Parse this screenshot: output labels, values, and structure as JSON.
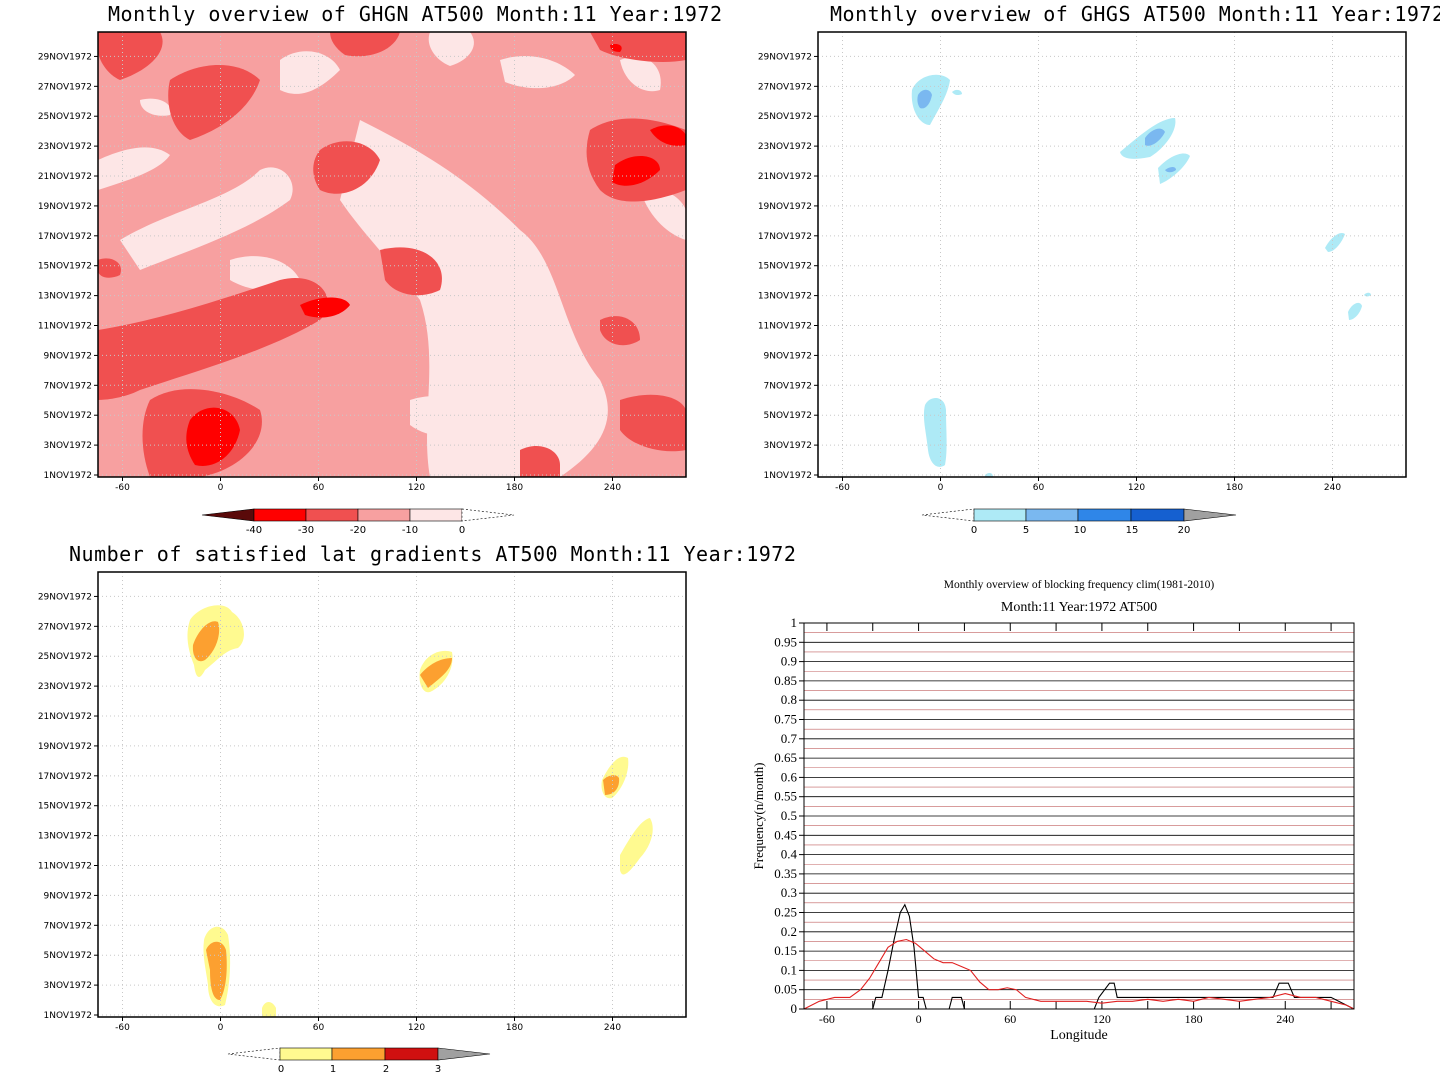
{
  "panels": {
    "ghgn": {
      "title": "Monthly overview of GHGN AT500 Month:11 Year:1972",
      "colorbar": [
        "-40",
        "-30",
        "-20",
        "-10",
        "0"
      ],
      "colors": [
        "#5a0a0a",
        "#ff0000",
        "#f05050",
        "#f7a0a0",
        "#fde6e6"
      ]
    },
    "ghgs": {
      "title": "Monthly overview of GHGS AT500 Month:11 Year:1972",
      "colorbar": [
        "0",
        "5",
        "10",
        "15",
        "20"
      ],
      "colors": [
        "#aeeaf6",
        "#7ab8f0",
        "#2f86e8",
        "#1560d0",
        "#a0a0a0"
      ]
    },
    "grad": {
      "title": "Number of satisfied lat gradients AT500 Month:11 Year:1972",
      "colorbar": [
        "0",
        "1",
        "2",
        "3"
      ],
      "colors": [
        "#fffa90",
        "#fca030",
        "#d01010",
        "#a0a0a0"
      ]
    },
    "freq": {
      "title": "Monthly overview of blocking frequency clim(1981-2010)",
      "subtitle": "Month:11 Year:1972  AT500"
    }
  },
  "date_axis": [
    "1NOV1972",
    "3NOV1972",
    "5NOV1972",
    "7NOV1972",
    "9NOV1972",
    "11NOV1972",
    "13NOV1972",
    "15NOV1972",
    "17NOV1972",
    "19NOV1972",
    "21NOV1972",
    "23NOV1972",
    "25NOV1972",
    "27NOV1972",
    "29NOV1972"
  ],
  "lon_axis": [
    "-60",
    "0",
    "60",
    "120",
    "180",
    "240"
  ],
  "chart_data": [
    {
      "type": "heatmap",
      "title": "Monthly overview of GHGN AT500 Month:11 Year:1972",
      "x_ticks": [
        -60,
        0,
        60,
        120,
        180,
        240
      ],
      "y_ticks": [
        "1NOV1972",
        "3NOV1972",
        "5NOV1972",
        "7NOV1972",
        "9NOV1972",
        "11NOV1972",
        "13NOV1972",
        "15NOV1972",
        "17NOV1972",
        "19NOV1972",
        "21NOV1972",
        "23NOV1972",
        "25NOV1972",
        "27NOV1972",
        "29NOV1972"
      ],
      "levels": [
        -40,
        -30,
        -20,
        -10,
        0
      ],
      "grid": true
    },
    {
      "type": "heatmap",
      "title": "Monthly overview of GHGS AT500 Month:11 Year:1972",
      "x_ticks": [
        -60,
        0,
        60,
        120,
        180,
        240
      ],
      "levels": [
        0,
        5,
        10,
        15,
        20
      ],
      "grid": true
    },
    {
      "type": "heatmap",
      "title": "Number of satisfied lat gradients AT500 Month:11 Year:1972",
      "x_ticks": [
        -60,
        0,
        60,
        120,
        180,
        240
      ],
      "levels": [
        0,
        1,
        2,
        3
      ],
      "grid": true
    },
    {
      "type": "line",
      "title": "Monthly overview of blocking frequency clim(1981-2010)",
      "subtitle": "Month:11 Year:1972  AT500",
      "xlabel": "Longitude",
      "ylabel": "Frequency(n/month)",
      "xlim": [
        -75,
        285
      ],
      "ylim": [
        0,
        1
      ],
      "x_ticks": [
        -60,
        0,
        60,
        120,
        180,
        240
      ],
      "y_ticks": [
        "0",
        "0.05",
        "0.1",
        "0.15",
        "0.2",
        "0.25",
        "0.3",
        "0.35",
        "0.4",
        "0.45",
        "0.5",
        "0.55",
        "0.6",
        "0.65",
        "0.7",
        "0.75",
        "0.8",
        "0.85",
        "0.9",
        "0.95",
        "1"
      ],
      "grid": true,
      "series": [
        {
          "color": "#000000",
          "x": [
            -75,
            -30,
            -28,
            -24,
            -20,
            -16,
            -12,
            -9,
            -6,
            -3,
            0,
            3,
            5,
            20,
            22,
            28,
            30,
            115,
            118,
            125,
            128,
            130,
            232,
            236,
            242,
            246,
            248,
            270,
            285
          ],
          "y": [
            0,
            0,
            0.03,
            0.03,
            0.1,
            0.18,
            0.25,
            0.27,
            0.24,
            0.16,
            0.03,
            0.03,
            0,
            0,
            0.03,
            0.03,
            0,
            0,
            0.03,
            0.067,
            0.067,
            0.03,
            0.03,
            0.067,
            0.067,
            0.03,
            0.03,
            0.03,
            0
          ]
        },
        {
          "color": "#e02020",
          "x": [
            -75,
            -65,
            -55,
            -45,
            -38,
            -32,
            -26,
            -20,
            -14,
            -8,
            -2,
            4,
            10,
            16,
            22,
            28,
            34,
            40,
            46,
            52,
            58,
            64,
            70,
            80,
            90,
            100,
            110,
            120,
            130,
            140,
            150,
            160,
            170,
            180,
            190,
            200,
            210,
            220,
            230,
            240,
            250,
            260,
            270,
            280,
            285
          ],
          "y": [
            0,
            0.02,
            0.03,
            0.03,
            0.05,
            0.08,
            0.12,
            0.16,
            0.175,
            0.18,
            0.17,
            0.15,
            0.13,
            0.12,
            0.12,
            0.11,
            0.1,
            0.07,
            0.05,
            0.05,
            0.055,
            0.05,
            0.03,
            0.02,
            0.02,
            0.02,
            0.02,
            0.015,
            0.02,
            0.02,
            0.025,
            0.02,
            0.025,
            0.02,
            0.03,
            0.025,
            0.02,
            0.025,
            0.03,
            0.04,
            0.03,
            0.03,
            0.02,
            0.01,
            0
          ]
        }
      ]
    }
  ]
}
